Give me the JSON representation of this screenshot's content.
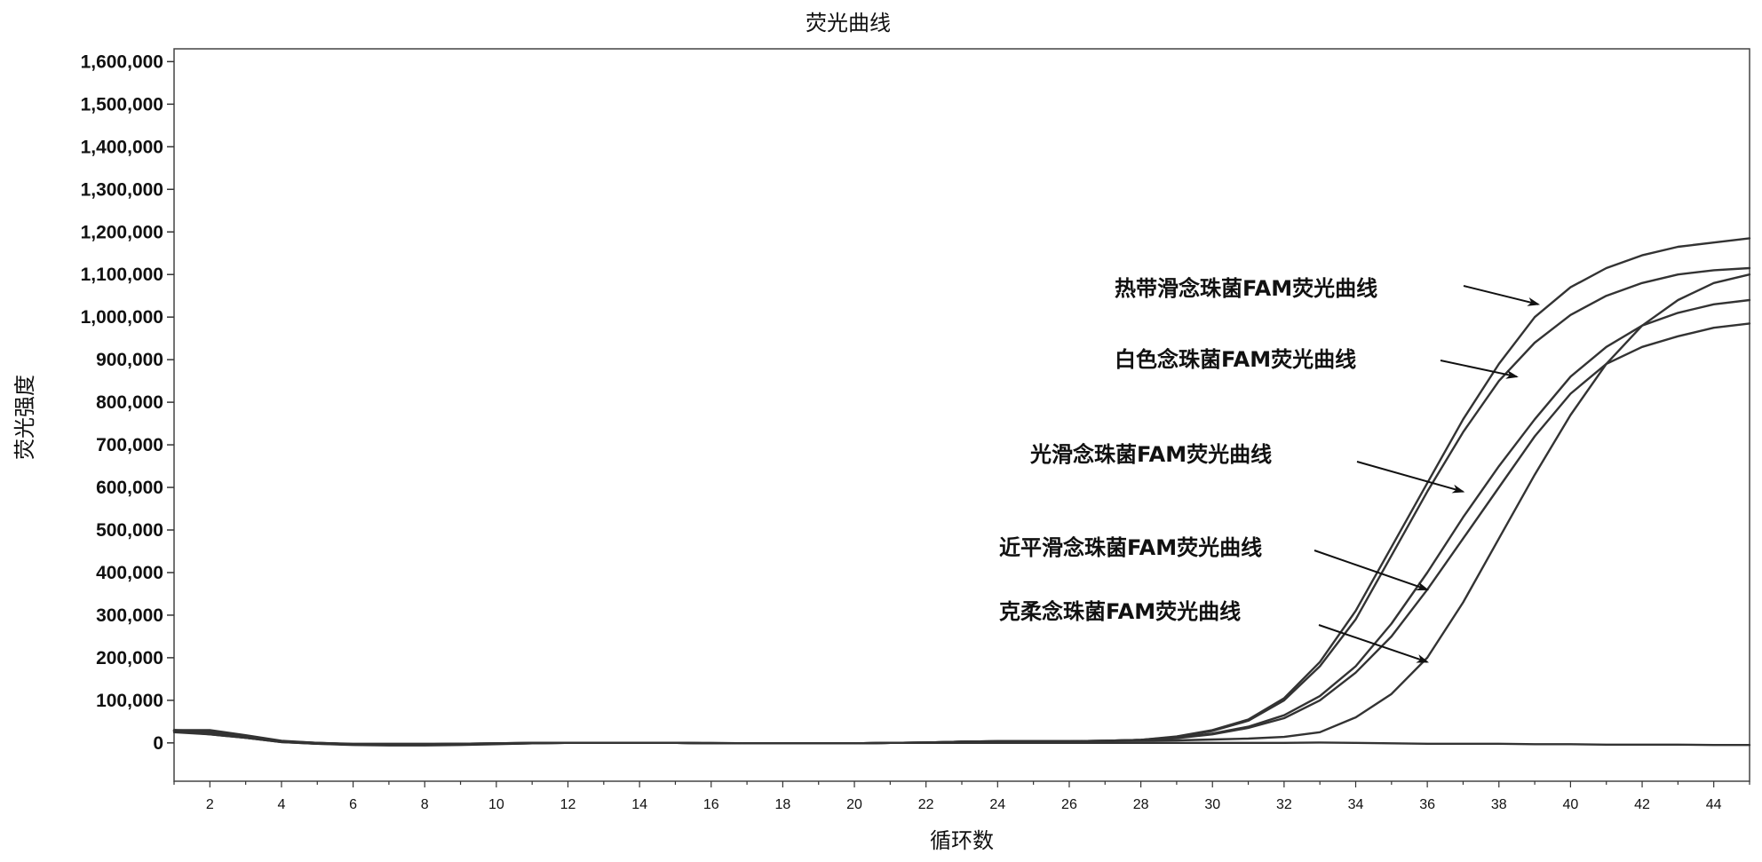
{
  "chart_data": {
    "type": "line",
    "title": "荧光曲线",
    "xlabel": "循环数",
    "ylabel": "荧光强度",
    "xlim": [
      1,
      45
    ],
    "ylim": [
      -90000,
      1630000
    ],
    "x_ticks": [
      2,
      4,
      6,
      8,
      10,
      12,
      14,
      16,
      18,
      20,
      22,
      24,
      26,
      28,
      30,
      32,
      34,
      36,
      38,
      40,
      42,
      44
    ],
    "y_ticks": [
      0,
      100000,
      200000,
      300000,
      400000,
      500000,
      600000,
      700000,
      800000,
      900000,
      1000000,
      1100000,
      1200000,
      1300000,
      1400000,
      1500000,
      1600000
    ],
    "y_tick_labels": [
      "0",
      "100,000",
      "200,000",
      "300,000",
      "400,000",
      "500,000",
      "600,000",
      "700,000",
      "800,000",
      "900,000",
      "1,000,000",
      "1,100,000",
      "1,200,000",
      "1,300,000",
      "1,400,000",
      "1,500,000",
      "1,600,000"
    ],
    "grid": false,
    "legend": "annotations with arrows",
    "line_color": "#333333",
    "x": [
      1,
      2,
      3,
      4,
      5,
      6,
      7,
      8,
      9,
      10,
      11,
      12,
      13,
      14,
      15,
      16,
      17,
      18,
      19,
      20,
      21,
      22,
      23,
      24,
      25,
      26,
      27,
      28,
      29,
      30,
      31,
      32,
      33,
      34,
      35,
      36,
      37,
      38,
      39,
      40,
      41,
      42,
      43,
      44,
      45
    ],
    "series": [
      {
        "name": "热带滑念珠菌FAM荧光曲线",
        "values": [
          30000,
          30000,
          18000,
          5000,
          0,
          -3000,
          -3000,
          -3000,
          -2000,
          -1000,
          0,
          0,
          0,
          0,
          0,
          -1000,
          -1000,
          -1000,
          -1000,
          -1000,
          0,
          1000,
          3000,
          4000,
          4000,
          4000,
          5000,
          7000,
          15000,
          30000,
          55000,
          105000,
          190000,
          310000,
          460000,
          610000,
          760000,
          890000,
          1000000,
          1070000,
          1115000,
          1145000,
          1165000,
          1175000,
          1185000
        ]
      },
      {
        "name": "白色念珠菌FAM荧光曲线",
        "values": [
          30000,
          25000,
          15000,
          3000,
          -2000,
          -5000,
          -6000,
          -6000,
          -5000,
          -3000,
          -1000,
          0,
          0,
          0,
          0,
          -1000,
          -1000,
          -1000,
          -1000,
          -1000,
          0,
          1000,
          3000,
          4000,
          4000,
          4000,
          5000,
          7000,
          14000,
          28000,
          52000,
          100000,
          180000,
          290000,
          440000,
          590000,
          730000,
          850000,
          940000,
          1005000,
          1050000,
          1080000,
          1100000,
          1110000,
          1115000
        ]
      },
      {
        "name": "光滑念珠菌FAM荧光曲线",
        "values": [
          28000,
          20000,
          12000,
          2000,
          -2000,
          -3000,
          -3000,
          -3000,
          -2000,
          -2000,
          -1000,
          0,
          0,
          0,
          0,
          -1000,
          -1000,
          -1000,
          -1000,
          -1000,
          0,
          1000,
          3000,
          4000,
          4000,
          4000,
          5000,
          7000,
          12000,
          22000,
          38000,
          65000,
          110000,
          180000,
          280000,
          400000,
          530000,
          650000,
          760000,
          860000,
          930000,
          980000,
          1010000,
          1030000,
          1040000
        ]
      },
      {
        "name": "近平滑念珠菌FAM荧光曲线",
        "values": [
          30000,
          28000,
          16000,
          4000,
          0,
          -3000,
          -3000,
          -3000,
          -2000,
          -1000,
          0,
          0,
          0,
          0,
          0,
          -1000,
          -1000,
          -1000,
          -1000,
          -1000,
          0,
          1000,
          3000,
          4000,
          4000,
          4000,
          5000,
          7000,
          11000,
          20000,
          35000,
          58000,
          100000,
          165000,
          250000,
          360000,
          480000,
          600000,
          720000,
          820000,
          890000,
          930000,
          955000,
          975000,
          985000
        ]
      },
      {
        "name": "克柔念珠菌FAM荧光曲线",
        "values": [
          28000,
          22000,
          12000,
          2000,
          -2000,
          -3000,
          -3000,
          -3000,
          -2000,
          -2000,
          -1000,
          0,
          0,
          0,
          0,
          -1000,
          -1000,
          -1000,
          -1000,
          -1000,
          0,
          1000,
          2000,
          3000,
          3000,
          3000,
          4000,
          5000,
          6000,
          8000,
          10000,
          14000,
          25000,
          60000,
          115000,
          200000,
          330000,
          480000,
          630000,
          770000,
          890000,
          980000,
          1040000,
          1080000,
          1100000
        ]
      },
      {
        "name": "",
        "values": [
          25000,
          20000,
          12000,
          3000,
          0,
          -2000,
          -2000,
          -2000,
          -2000,
          -1000,
          0,
          0,
          0,
          0,
          0,
          0,
          -1000,
          -1000,
          -1000,
          -1000,
          0,
          0,
          0,
          0,
          0,
          0,
          0,
          0,
          0,
          0,
          0,
          0,
          1000,
          0,
          -1000,
          -2000,
          -2000,
          -2000,
          -3000,
          -3000,
          -4000,
          -4000,
          -4000,
          -5000,
          -5000
        ]
      }
    ],
    "annotations": [
      {
        "text": "热带滑念珠菌FAM荧光曲线",
        "target_x": 39.1,
        "target_y": 1030000
      },
      {
        "text": "白色念珠菌FAM荧光曲线",
        "target_x": 38.5,
        "target_y": 860000
      },
      {
        "text": "光滑念珠菌FAM荧光曲线",
        "target_x": 37.0,
        "target_y": 590000
      },
      {
        "text": "近平滑念珠菌FAM荧光曲线",
        "target_x": 36.0,
        "target_y": 360000
      },
      {
        "text": "克柔念珠菌FAM荧光曲线",
        "target_x": 36.0,
        "target_y": 190000
      }
    ]
  }
}
